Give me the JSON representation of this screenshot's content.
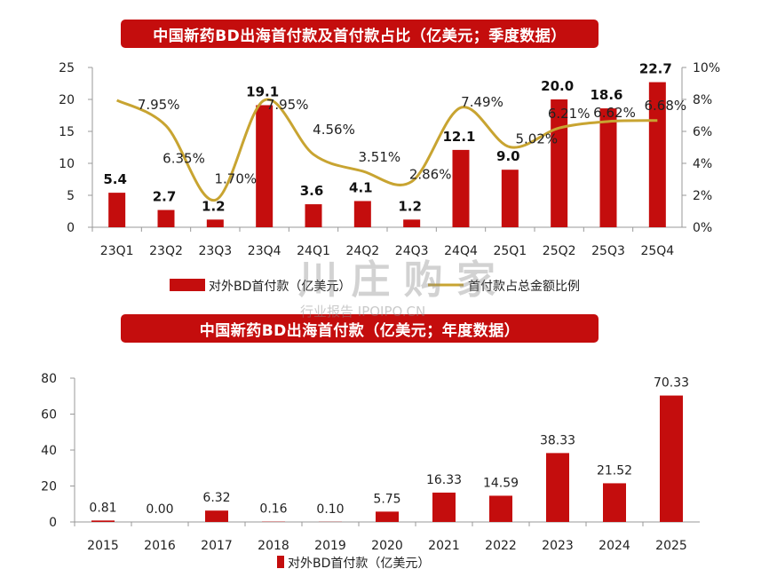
{
  "watermark": {
    "main": "川 庄 购 家",
    "sub": "行业报告 IPOIPO.CN"
  },
  "colors": {
    "bar": "#c40d0d",
    "line": "#c8a431",
    "banner": "#c40d0d"
  },
  "chart_data": [
    {
      "type": "bar",
      "title": "中国新药BD出海首付款及首付款占比（亿美元；季度数据）",
      "categories": [
        "23Q1",
        "23Q2",
        "23Q3",
        "23Q4",
        "24Q1",
        "24Q2",
        "24Q3",
        "24Q4",
        "25Q1",
        "25Q2",
        "25Q3",
        "25Q4"
      ],
      "series": [
        {
          "name": "对外BD首付款（亿美元）",
          "type": "bar",
          "axis": "left",
          "values": [
            5.4,
            2.7,
            1.2,
            19.1,
            3.6,
            4.1,
            1.2,
            12.1,
            9.0,
            20.0,
            18.6,
            22.7
          ],
          "labels": [
            "5.4",
            "2.7",
            "1.2",
            "19.1",
            "3.6",
            "4.1",
            "1.2",
            "12.1",
            "9.0",
            "20.0",
            "18.6",
            "22.7"
          ]
        },
        {
          "name": "首付款占总金额比例",
          "type": "line",
          "axis": "right",
          "values": [
            7.95,
            6.35,
            1.7,
            7.95,
            4.56,
            3.51,
            2.86,
            7.49,
            5.02,
            6.21,
            6.62,
            6.68
          ],
          "labels": [
            "7.95%",
            "6.35%",
            "1.70%",
            "7.95%",
            "4.56%",
            "3.51%",
            "2.86%",
            "7.49%",
            "5.02%",
            "6.21%",
            "6.62%",
            "6.68%"
          ]
        }
      ],
      "ylim_left": [
        0,
        25
      ],
      "yticks_left": [
        "0",
        "5",
        "10",
        "15",
        "20",
        "25"
      ],
      "ylim_right": [
        0,
        10
      ],
      "yticks_right": [
        "0%",
        "2%",
        "4%",
        "6%",
        "8%",
        "10%"
      ],
      "legend": "bottom",
      "grid": false
    },
    {
      "type": "bar",
      "title": "中国新药BD出海首付款（亿美元；年度数据）",
      "categories": [
        "2015",
        "2016",
        "2017",
        "2018",
        "2019",
        "2020",
        "2021",
        "2022",
        "2023",
        "2024",
        "2025"
      ],
      "series": [
        {
          "name": "对外BD首付款（亿美元）",
          "values": [
            0.81,
            0.0,
            6.32,
            0.16,
            0.1,
            5.75,
            16.33,
            14.59,
            38.33,
            21.52,
            70.33
          ],
          "labels": [
            "0.81",
            "0.00",
            "6.32",
            "0.16",
            "0.10",
            "5.75",
            "16.33",
            "14.59",
            "38.33",
            "21.52",
            "70.33"
          ]
        }
      ],
      "ylim": [
        0,
        80
      ],
      "yticks": [
        "0",
        "20",
        "40",
        "60",
        "80"
      ],
      "legend": "bottom",
      "grid": false
    }
  ]
}
